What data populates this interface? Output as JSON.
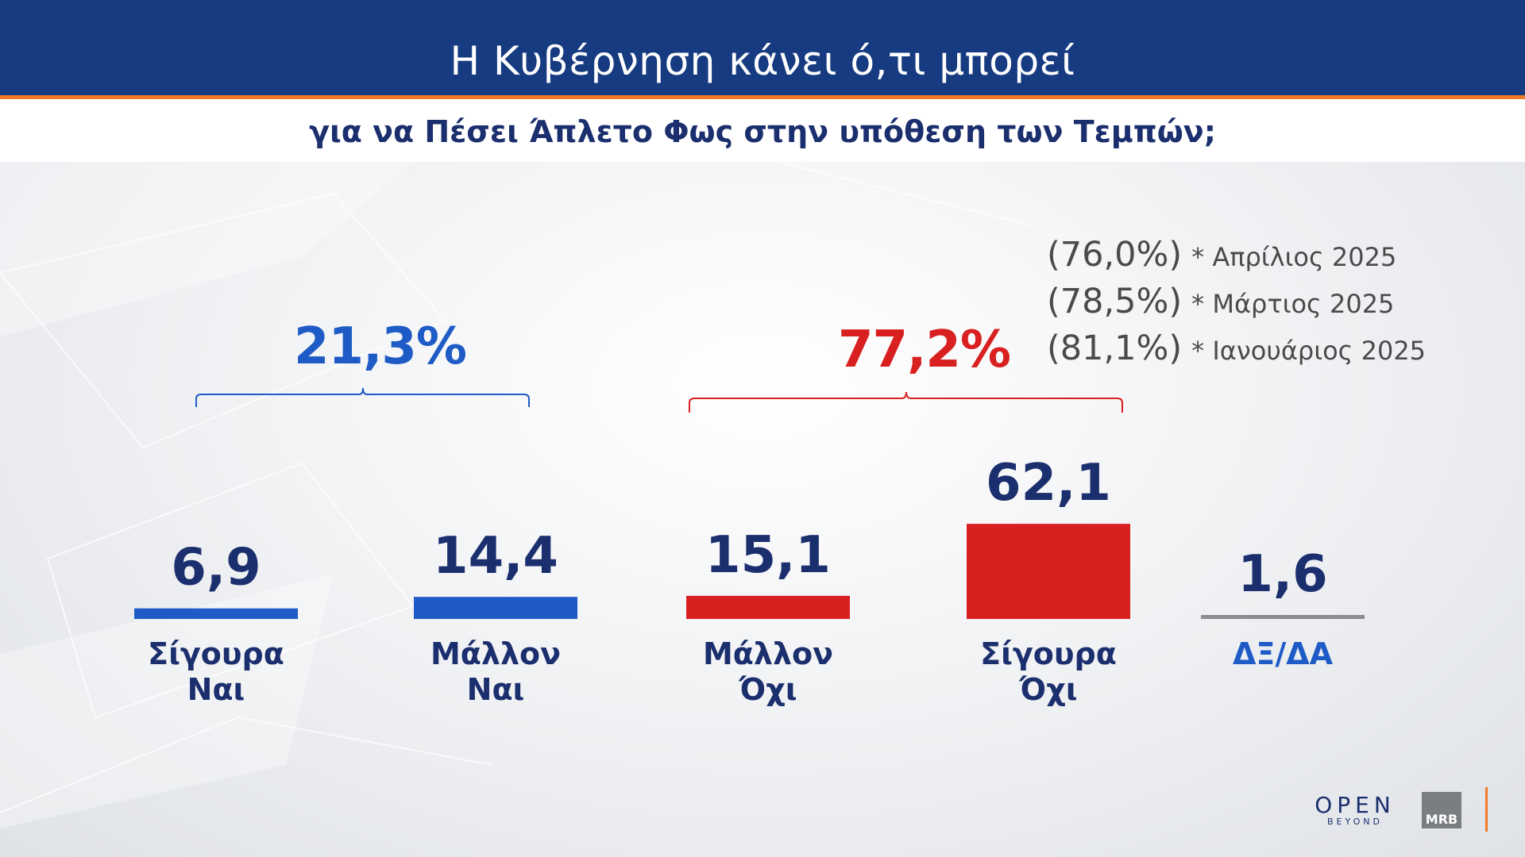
{
  "header": {
    "title": "Η Κυβέρνηση κάνει ό,τι μπορεί",
    "subtitle": "για να Πέσει Άπλετο Φως στην υπόθεση των Τεμπών;"
  },
  "groups": {
    "yes_total": "21,3%",
    "no_total": "77,2%"
  },
  "history": [
    {
      "value": "(76,0%)",
      "label": "* Απρίλιος 2025"
    },
    {
      "value": "(78,5%)",
      "label": "* Μάρτιος 2025"
    },
    {
      "value": "(81,1%)",
      "label": "* Ιανουάριος 2025"
    }
  ],
  "chart_data": {
    "type": "bar",
    "title": "Η Κυβέρνηση κάνει ό,τι μπορεί",
    "subtitle": "για να Πέσει Άπλετο Φως στην υπόθεση των Τεμπών;",
    "categories": [
      [
        "Σίγουρα",
        "Ναι"
      ],
      [
        "Μάλλον",
        "Ναι"
      ],
      [
        "Μάλλον",
        "Όχι"
      ],
      [
        "Σίγουρα",
        "Όχι"
      ],
      [
        "ΔΞ/ΔΑ"
      ]
    ],
    "values": [
      6.9,
      14.4,
      15.1,
      62.1,
      1.6
    ],
    "value_labels": [
      "6,9",
      "14,4",
      "15,1",
      "62,1",
      "1,6"
    ],
    "bar_colors": [
      "#1e5bc6",
      "#1e5bc6",
      "#d92020",
      "#d92020",
      "#8a8c90"
    ],
    "label_colors": [
      "#1b2f6e",
      "#1b2f6e",
      "#1b2f6e",
      "#1b2f6e",
      "#1e5bc6"
    ],
    "group_colors": {
      "yes": "#1e5bc6",
      "no": "#d92020"
    },
    "grid": false
  },
  "branding": {
    "open": "OPEN",
    "beyond": "BEYOND",
    "mrb": "MRB"
  }
}
